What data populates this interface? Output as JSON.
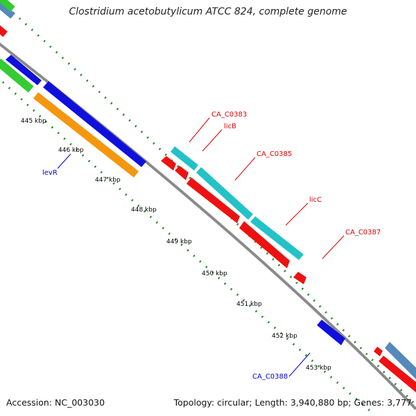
{
  "title": "Clostridium acetobutylicum ATCC 824, complete genome",
  "footer": {
    "accession": "Accession: NC_003030",
    "info": "Topology: circular; Length: 3,940,880 bp; Genes: 3,777"
  },
  "colors": {
    "background": "#ffffff",
    "backbone": "#8a8a8a",
    "dotted_ticks": "#1f8a1f",
    "red": "#ee1111",
    "blue": "#1010dd",
    "cyan": "#22c2c8",
    "orange": "#f5960f",
    "green": "#33cc33",
    "steelblue": "#5588bb",
    "label_red": "#dd0000",
    "label_blue": "#0000cc"
  },
  "ticks": [
    {
      "label": "445 kbp"
    },
    {
      "label": "446 kbp"
    },
    {
      "label": "447 kbp"
    },
    {
      "label": "448 kbp"
    },
    {
      "label": "449 kbp"
    },
    {
      "label": "450 kbp"
    },
    {
      "label": "451 kbp"
    },
    {
      "label": "452 kbp"
    },
    {
      "label": "453 kbp"
    }
  ],
  "gene_labels": [
    {
      "name": "CA_C0383",
      "color": "red"
    },
    {
      "name": "licB",
      "color": "red"
    },
    {
      "name": "CA_C0385",
      "color": "red"
    },
    {
      "name": "licC",
      "color": "red"
    },
    {
      "name": "CA_C0387",
      "color": "red"
    },
    {
      "name": "levR",
      "color": "blue"
    },
    {
      "name": "CA_C0388",
      "color": "blue"
    }
  ]
}
